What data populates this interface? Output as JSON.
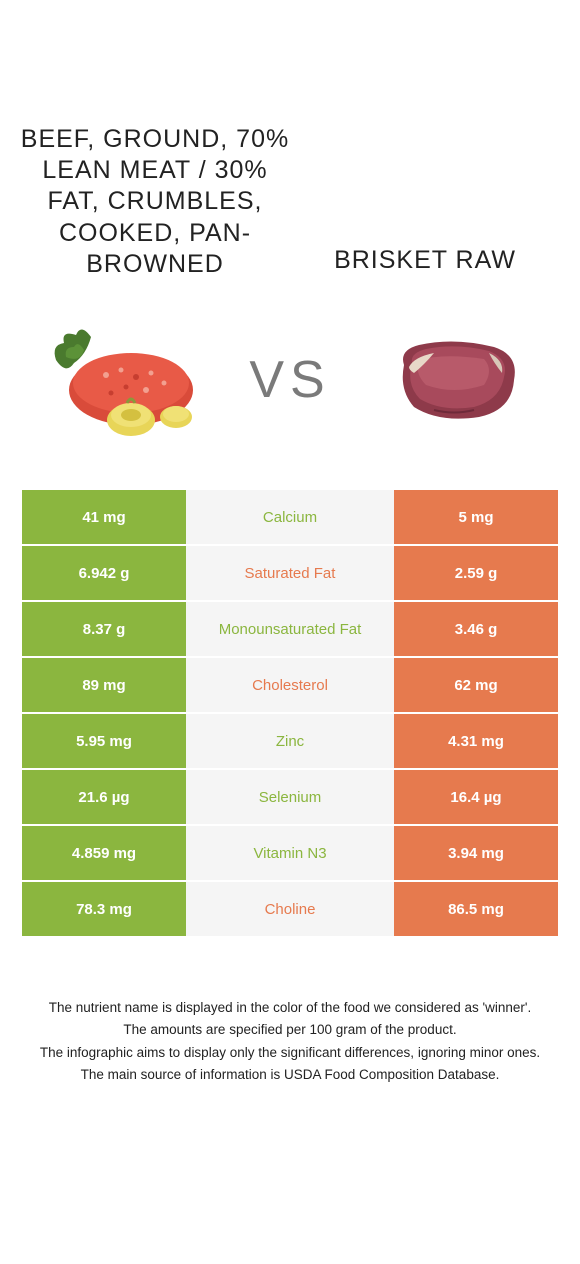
{
  "colors": {
    "left": "#8bb63f",
    "right": "#e67a4e",
    "mid_bg": "#f5f5f5",
    "vs_text": "#7a7a7a",
    "body_text": "#222222",
    "background": "#ffffff"
  },
  "typography": {
    "title_fontsize": 25,
    "vs_fontsize": 52,
    "cell_fontsize": 15,
    "footnote_fontsize": 13.5
  },
  "titles": {
    "left": "BEEF, GROUND, 70% LEAN MEAT / 30% FAT, CRUMBLES, COOKED, PAN-BROWNED",
    "right": "BRISKET RAW"
  },
  "vs": "VS",
  "rows": [
    {
      "nutrient": "Calcium",
      "left": "41 mg",
      "right": "5 mg",
      "winner": "left"
    },
    {
      "nutrient": "Saturated Fat",
      "left": "6.942 g",
      "right": "2.59 g",
      "winner": "right"
    },
    {
      "nutrient": "Monounsaturated Fat",
      "left": "8.37 g",
      "right": "3.46 g",
      "winner": "left"
    },
    {
      "nutrient": "Cholesterol",
      "left": "89 mg",
      "right": "62 mg",
      "winner": "right"
    },
    {
      "nutrient": "Zinc",
      "left": "5.95 mg",
      "right": "4.31 mg",
      "winner": "left"
    },
    {
      "nutrient": "Selenium",
      "left": "21.6 µg",
      "right": "16.4 µg",
      "winner": "left"
    },
    {
      "nutrient": "Vitamin N3",
      "left": "4.859 mg",
      "right": "3.94 mg",
      "winner": "left"
    },
    {
      "nutrient": "Choline",
      "left": "78.3 mg",
      "right": "86.5 mg",
      "winner": "right"
    }
  ],
  "footnotes": [
    "The nutrient name is displayed in the color of the food we considered as 'winner'.",
    "The amounts are specified per 100 gram of the product.",
    "The infographic aims to display only the significant differences, ignoring minor ones.",
    "The main source of information is USDA Food Composition Database."
  ]
}
